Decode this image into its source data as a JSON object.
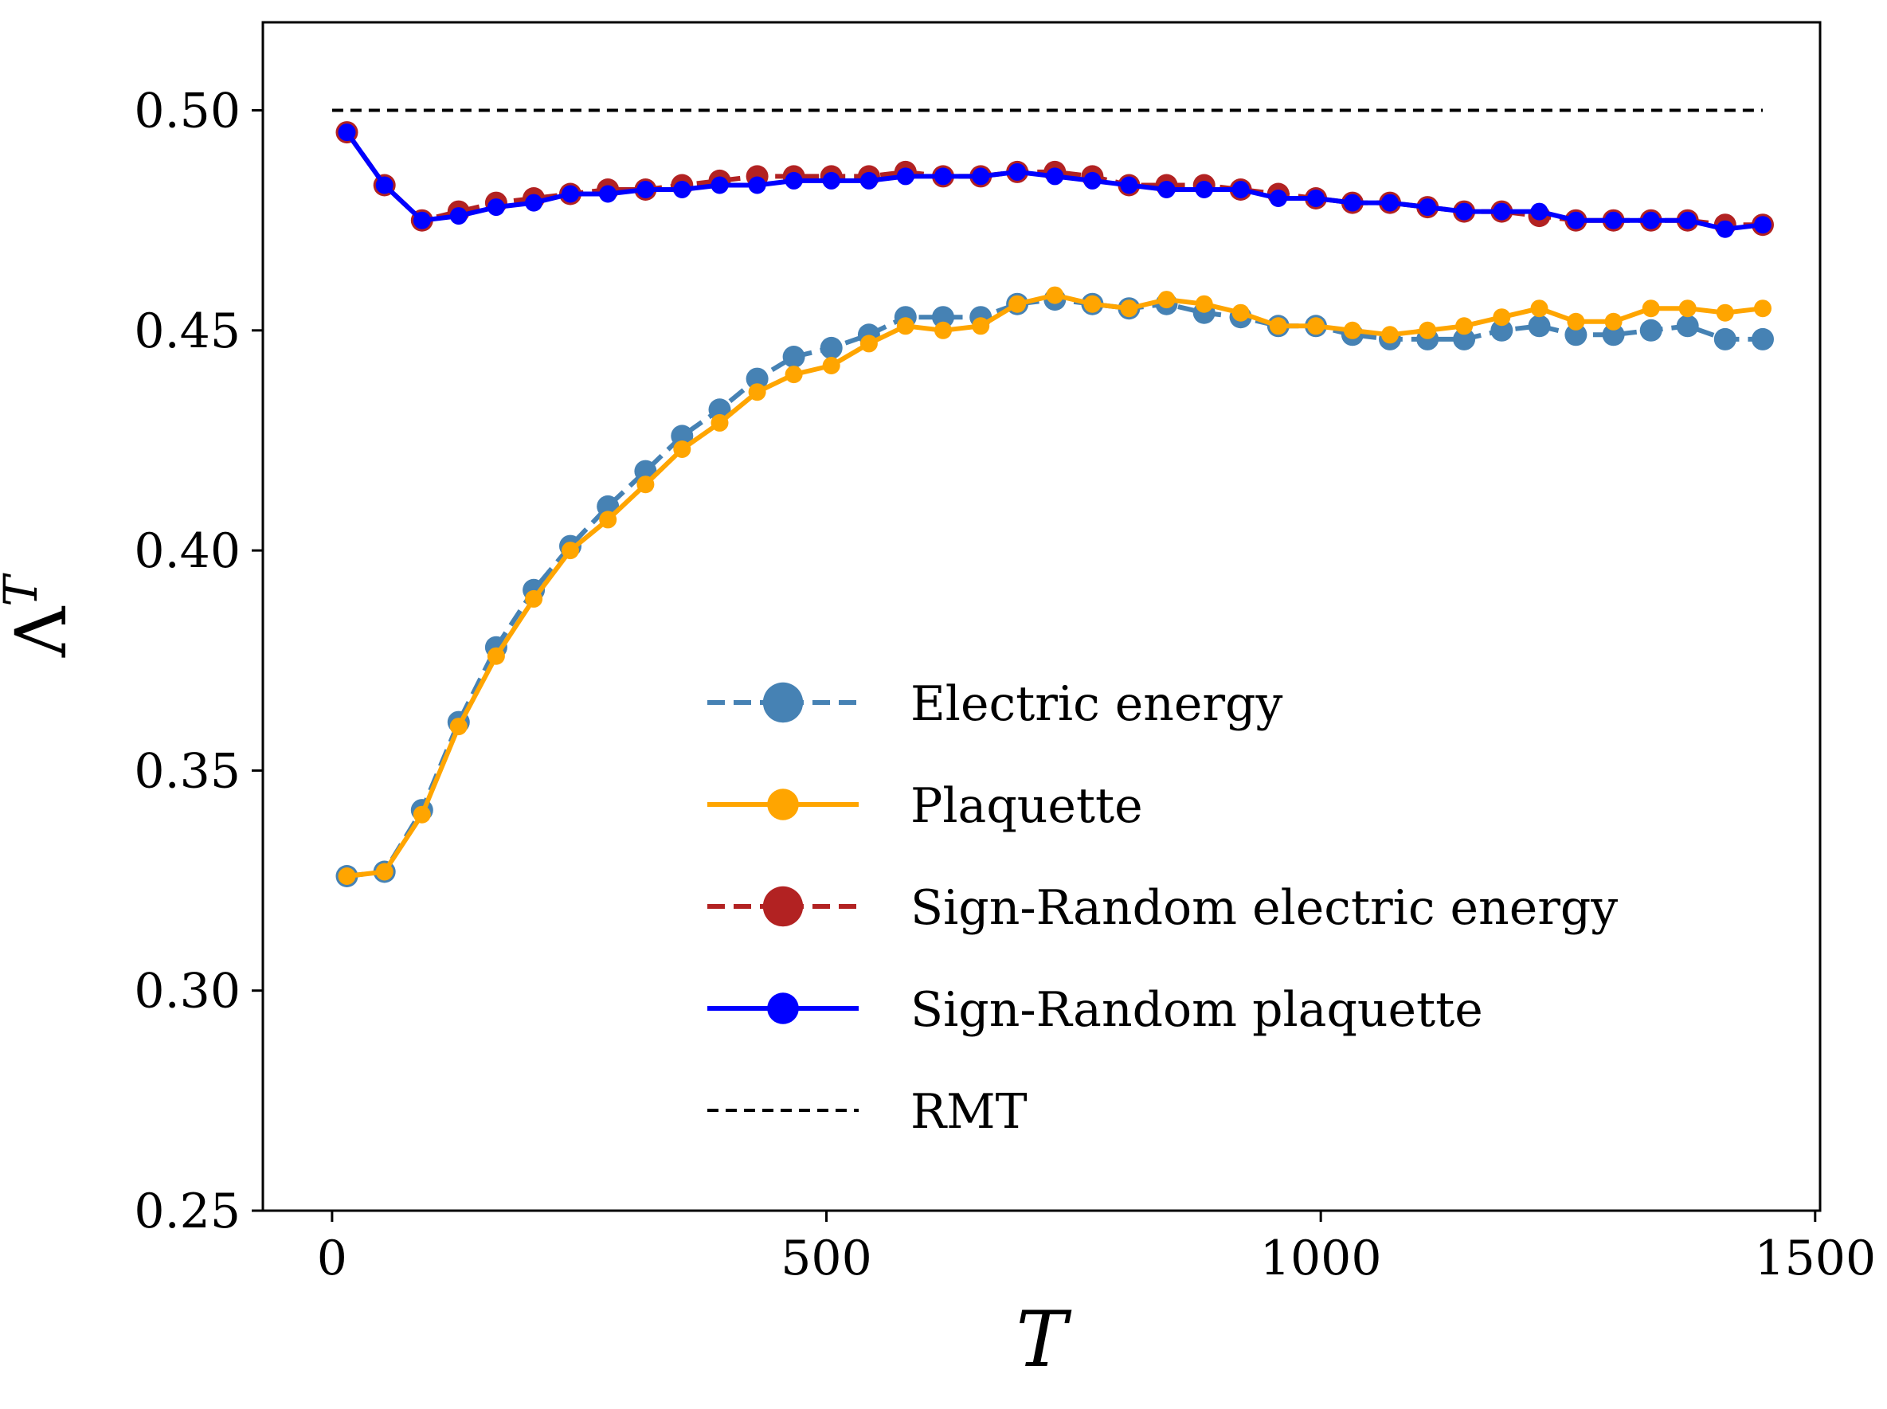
{
  "chart_data": {
    "type": "line",
    "xlabel": "T",
    "ylabel": "Λ",
    "ylabel_superscript": "T",
    "xlim": [
      -70,
      1505
    ],
    "ylim": [
      0.25,
      0.52
    ],
    "xticks": [
      0,
      500,
      1000,
      1500
    ],
    "xtick_labels": [
      "0",
      "500",
      "1000",
      "1500"
    ],
    "yticks": [
      0.25,
      0.3,
      0.35,
      0.4,
      0.45,
      0.5
    ],
    "ytick_labels": [
      "0.25",
      "0.30",
      "0.35",
      "0.40",
      "0.45",
      "0.50"
    ],
    "grid": false,
    "legend_position": "center-right",
    "x": [
      15,
      53,
      91,
      128,
      166,
      204,
      241,
      279,
      317,
      354,
      392,
      430,
      467,
      505,
      543,
      580,
      618,
      656,
      693,
      731,
      769,
      806,
      844,
      882,
      919,
      957,
      995,
      1032,
      1070,
      1108,
      1145,
      1183,
      1221,
      1258,
      1296,
      1334,
      1371,
      1409,
      1447
    ],
    "series": [
      {
        "name": "Electric energy",
        "color": "#4682b4",
        "linestyle": "dashed",
        "marker_size": "large",
        "values": [
          0.326,
          0.327,
          0.341,
          0.361,
          0.378,
          0.391,
          0.401,
          0.41,
          0.418,
          0.426,
          0.432,
          0.439,
          0.444,
          0.446,
          0.449,
          0.453,
          0.453,
          0.453,
          0.456,
          0.457,
          0.456,
          0.455,
          0.456,
          0.454,
          0.453,
          0.451,
          0.451,
          0.449,
          0.448,
          0.448,
          0.448,
          0.45,
          0.451,
          0.449,
          0.449,
          0.45,
          0.451,
          0.448,
          0.448
        ]
      },
      {
        "name": "Plaquette",
        "color": "#ffa500",
        "linestyle": "solid",
        "marker_size": "small",
        "values": [
          0.326,
          0.327,
          0.34,
          0.36,
          0.376,
          0.389,
          0.4,
          0.407,
          0.415,
          0.423,
          0.429,
          0.436,
          0.44,
          0.442,
          0.447,
          0.451,
          0.45,
          0.451,
          0.456,
          0.458,
          0.456,
          0.455,
          0.457,
          0.456,
          0.454,
          0.451,
          0.451,
          0.45,
          0.449,
          0.45,
          0.451,
          0.453,
          0.455,
          0.452,
          0.452,
          0.455,
          0.455,
          0.454,
          0.455
        ]
      },
      {
        "name": "Sign-Random electric energy",
        "color": "#b22222",
        "linestyle": "dashed",
        "marker_size": "large",
        "values": [
          0.495,
          0.483,
          0.475,
          0.477,
          0.479,
          0.48,
          0.481,
          0.482,
          0.482,
          0.483,
          0.484,
          0.485,
          0.485,
          0.485,
          0.485,
          0.486,
          0.485,
          0.485,
          0.486,
          0.486,
          0.485,
          0.483,
          0.483,
          0.483,
          0.482,
          0.481,
          0.48,
          0.479,
          0.479,
          0.478,
          0.477,
          0.477,
          0.476,
          0.475,
          0.475,
          0.475,
          0.475,
          0.474,
          0.474
        ]
      },
      {
        "name": "Sign-Random plaquette",
        "color": "#0000ff",
        "linestyle": "solid",
        "marker_size": "small",
        "values": [
          0.495,
          0.483,
          0.475,
          0.476,
          0.478,
          0.479,
          0.481,
          0.481,
          0.482,
          0.482,
          0.483,
          0.483,
          0.484,
          0.484,
          0.484,
          0.485,
          0.485,
          0.485,
          0.486,
          0.485,
          0.484,
          0.483,
          0.482,
          0.482,
          0.482,
          0.48,
          0.48,
          0.479,
          0.479,
          0.478,
          0.477,
          0.477,
          0.477,
          0.475,
          0.475,
          0.475,
          0.475,
          0.473,
          0.474
        ]
      },
      {
        "name": "RMT",
        "color": "#000000",
        "linestyle": "dashed",
        "marker_size": "none",
        "x": [
          0,
          1447
        ],
        "values": [
          0.5,
          0.5
        ]
      }
    ]
  }
}
